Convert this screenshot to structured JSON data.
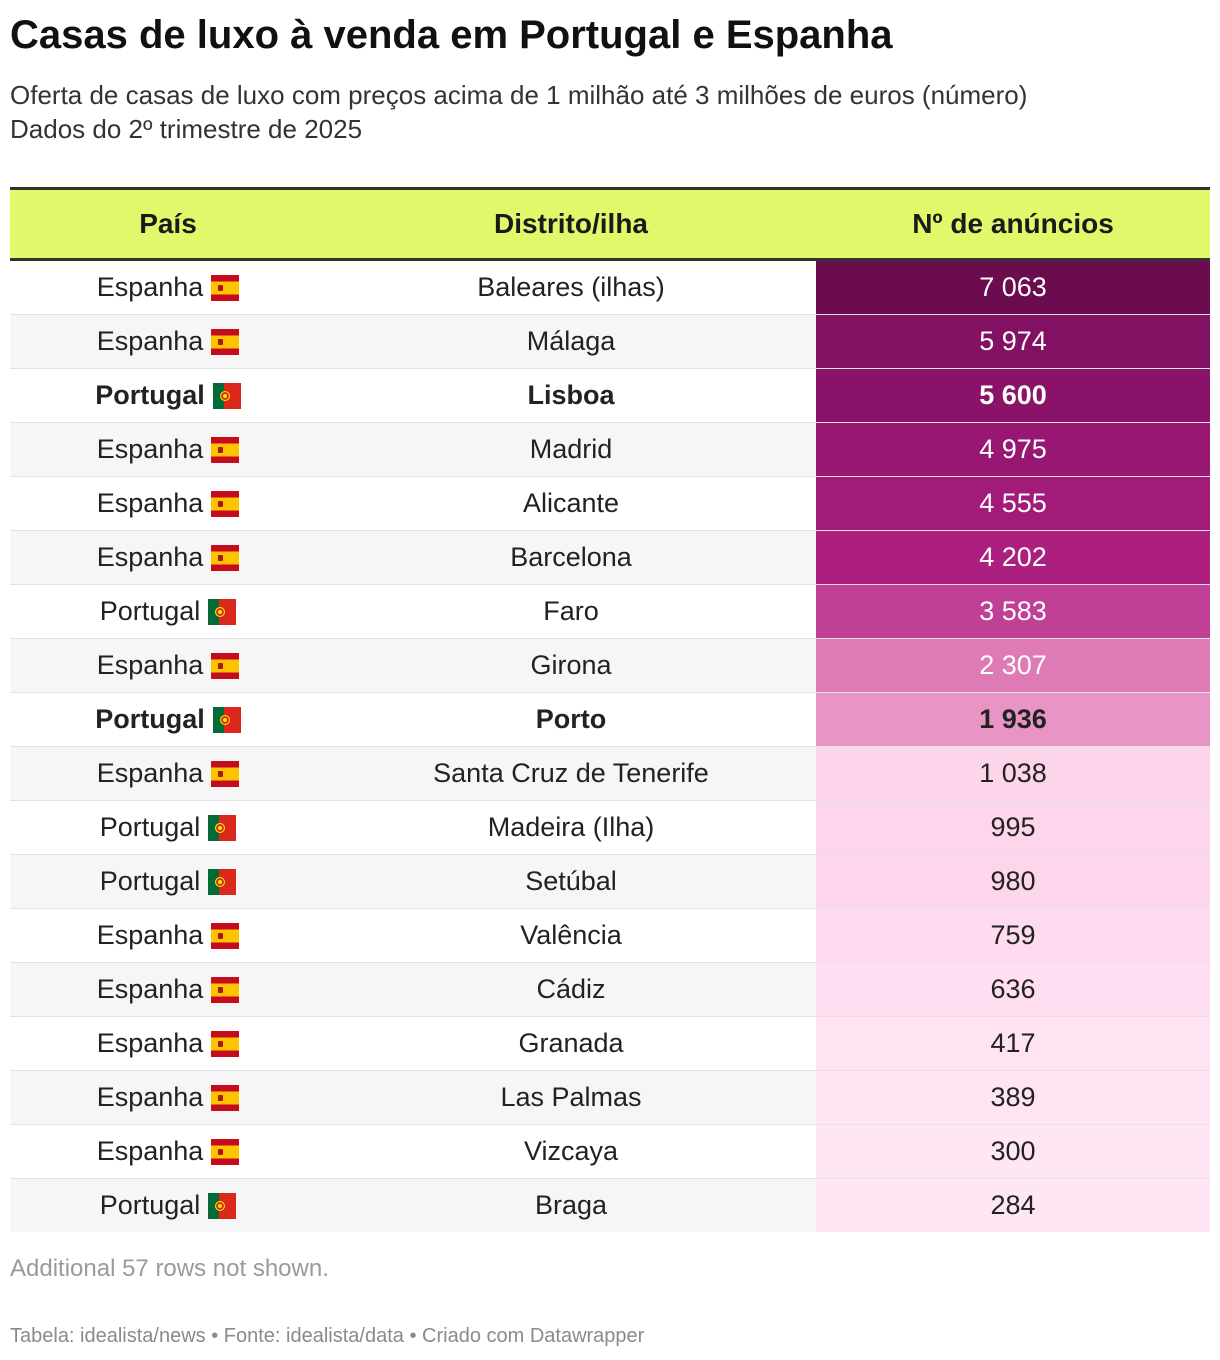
{
  "header": {
    "title": "Casas de luxo à venda em Portugal e Espanha",
    "subtitle_line1": "Oferta de casas de luxo com preços acima de 1 milhão até 3 milhões de euros (número)",
    "subtitle_line2": "Dados do 2º trimestre de 2025"
  },
  "chart_data": {
    "type": "table",
    "columns": [
      "País",
      "Distrito/ilha",
      "Nº de anúncios"
    ],
    "rows": [
      {
        "country": "Espanha",
        "flag": "spain-flag-icon",
        "district": "Baleares (ilhas)",
        "value_label": "7 063",
        "value": 7063,
        "bold": false
      },
      {
        "country": "Espanha",
        "flag": "spain-flag-icon",
        "district": "Málaga",
        "value_label": "5 974",
        "value": 5974,
        "bold": false
      },
      {
        "country": "Portugal",
        "flag": "portugal-flag-icon",
        "district": "Lisboa",
        "value_label": "5 600",
        "value": 5600,
        "bold": true
      },
      {
        "country": "Espanha",
        "flag": "spain-flag-icon",
        "district": "Madrid",
        "value_label": "4 975",
        "value": 4975,
        "bold": false
      },
      {
        "country": "Espanha",
        "flag": "spain-flag-icon",
        "district": "Alicante",
        "value_label": "4 555",
        "value": 4555,
        "bold": false
      },
      {
        "country": "Espanha",
        "flag": "spain-flag-icon",
        "district": "Barcelona",
        "value_label": "4 202",
        "value": 4202,
        "bold": false
      },
      {
        "country": "Portugal",
        "flag": "portugal-flag-icon",
        "district": "Faro",
        "value_label": "3 583",
        "value": 3583,
        "bold": false
      },
      {
        "country": "Espanha",
        "flag": "spain-flag-icon",
        "district": "Girona",
        "value_label": "2 307",
        "value": 2307,
        "bold": false
      },
      {
        "country": "Portugal",
        "flag": "portugal-flag-icon",
        "district": "Porto",
        "value_label": "1 936",
        "value": 1936,
        "bold": true
      },
      {
        "country": "Espanha",
        "flag": "spain-flag-icon",
        "district": "Santa Cruz de Tenerife",
        "value_label": "1 038",
        "value": 1038,
        "bold": false
      },
      {
        "country": "Portugal",
        "flag": "portugal-flag-icon",
        "district": "Madeira (Ilha)",
        "value_label": "995",
        "value": 995,
        "bold": false
      },
      {
        "country": "Portugal",
        "flag": "portugal-flag-icon",
        "district": "Setúbal",
        "value_label": "980",
        "value": 980,
        "bold": false
      },
      {
        "country": "Espanha",
        "flag": "spain-flag-icon",
        "district": "Valência",
        "value_label": "759",
        "value": 759,
        "bold": false
      },
      {
        "country": "Espanha",
        "flag": "spain-flag-icon",
        "district": "Cádiz",
        "value_label": "636",
        "value": 636,
        "bold": false
      },
      {
        "country": "Espanha",
        "flag": "spain-flag-icon",
        "district": "Granada",
        "value_label": "417",
        "value": 417,
        "bold": false
      },
      {
        "country": "Espanha",
        "flag": "spain-flag-icon",
        "district": "Las Palmas",
        "value_label": "389",
        "value": 389,
        "bold": false
      },
      {
        "country": "Espanha",
        "flag": "spain-flag-icon",
        "district": "Vizcaya",
        "value_label": "300",
        "value": 300,
        "bold": false
      },
      {
        "country": "Portugal",
        "flag": "portugal-flag-icon",
        "district": "Braga",
        "value_label": "284",
        "value": 284,
        "bold": false
      }
    ],
    "color_scale": [
      "#ffe6f4",
      "#fcd0e8",
      "#e07db8",
      "#cd56a6",
      "#ad1f7f",
      "#931670",
      "#801062",
      "#6a0c4e"
    ]
  },
  "note": "Additional 57 rows not shown.",
  "footer": "Tabela: idealista/news • Fonte: idealista/data • Criado com Datawrapper"
}
